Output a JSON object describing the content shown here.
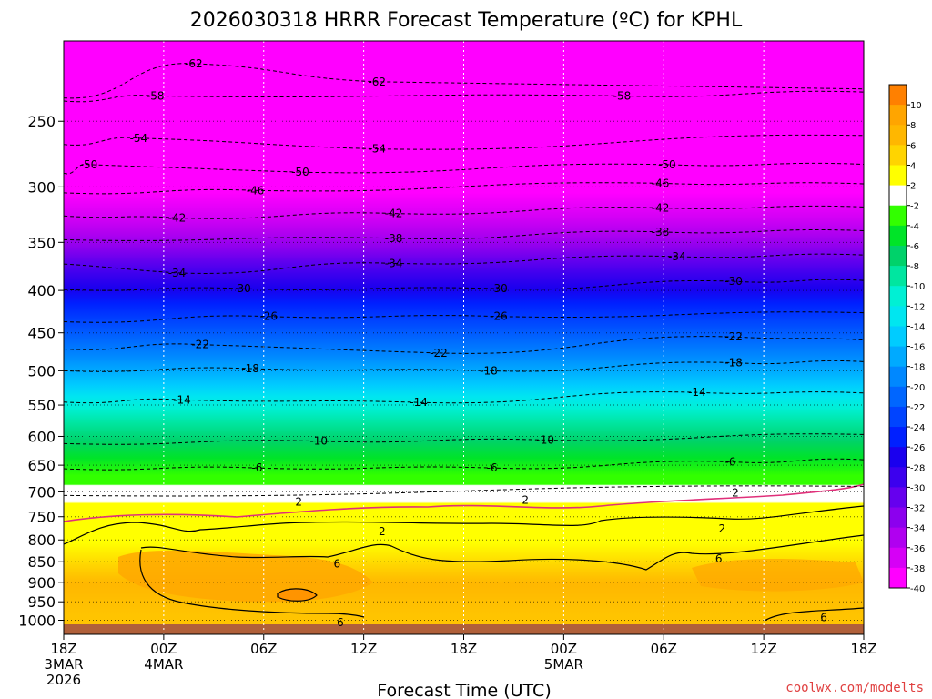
{
  "chart_data": {
    "type": "heatmap",
    "title": "2026030318 HRRR Forecast Temperature (ºC) for KPHL",
    "xlabel": "Forecast Time (UTC)",
    "ylabel": "",
    "credit": "coolwx.com/modelts",
    "x_ticks": [
      {
        "hour": 0,
        "lines": [
          "18Z",
          "3MAR",
          "2026"
        ]
      },
      {
        "hour": 6,
        "lines": [
          "00Z",
          "4MAR"
        ]
      },
      {
        "hour": 12,
        "lines": [
          "06Z"
        ]
      },
      {
        "hour": 18,
        "lines": [
          "12Z"
        ]
      },
      {
        "hour": 24,
        "lines": [
          "18Z"
        ]
      },
      {
        "hour": 30,
        "lines": [
          "00Z",
          "5MAR"
        ]
      },
      {
        "hour": 36,
        "lines": [
          "06Z"
        ]
      },
      {
        "hour": 42,
        "lines": [
          "12Z"
        ]
      },
      {
        "hour": 48,
        "lines": [
          "18Z"
        ]
      }
    ],
    "x_range_hours": [
      0,
      48
    ],
    "y_axis": "pressure (hPa), log scale, inverted",
    "y_ticks": [
      250,
      300,
      350,
      400,
      450,
      500,
      550,
      600,
      650,
      700,
      750,
      800,
      850,
      900,
      950,
      1000
    ],
    "y_range": [
      200,
      1040
    ],
    "grid": true,
    "colorbar_labels": [
      10,
      8,
      6,
      4,
      2,
      -2,
      -4,
      -6,
      -8,
      -10,
      -12,
      -14,
      -16,
      -18,
      -20,
      -22,
      -24,
      -26,
      -28,
      -30,
      -32,
      -34,
      -36,
      -38,
      -40
    ],
    "colorbar_colors": [
      "#ff8000",
      "#ffa500",
      "#ffb700",
      "#ffd400",
      "#ffff00",
      "#ffffff",
      "#32ff00",
      "#00e428",
      "#00d26a",
      "#00e6a0",
      "#00f0d4",
      "#00e6f0",
      "#00ccff",
      "#00aaff",
      "#0088ff",
      "#0066ff",
      "#0044ff",
      "#0020ff",
      "#1a00ee",
      "#3c00ee",
      "#6600ee",
      "#8c00ee",
      "#b000f0",
      "#d600f6",
      "#ff00ff"
    ],
    "contour_labels": [
      {
        "label": "-62",
        "hour": 7.8,
        "p": 213
      },
      {
        "label": "-62",
        "hour": 18.8,
        "p": 224
      },
      {
        "label": "-58",
        "hour": 5.5,
        "p": 233
      },
      {
        "label": "-58",
        "hour": 33.5,
        "p": 233
      },
      {
        "label": "-54",
        "hour": 4.5,
        "p": 262
      },
      {
        "label": "-54",
        "hour": 18.8,
        "p": 270
      },
      {
        "label": "-50",
        "hour": 1.5,
        "p": 282
      },
      {
        "label": "-50",
        "hour": 14.2,
        "p": 288
      },
      {
        "label": "-50",
        "hour": 36.2,
        "p": 282
      },
      {
        "label": "-46",
        "hour": 11.5,
        "p": 303
      },
      {
        "label": "-46",
        "hour": 35.8,
        "p": 297
      },
      {
        "label": "-42",
        "hour": 6.8,
        "p": 327
      },
      {
        "label": "-42",
        "hour": 19.8,
        "p": 323
      },
      {
        "label": "-42",
        "hour": 35.8,
        "p": 318
      },
      {
        "label": "-38",
        "hour": 19.8,
        "p": 346
      },
      {
        "label": "-38",
        "hour": 35.8,
        "p": 340
      },
      {
        "label": "-34",
        "hour": 6.8,
        "p": 381
      },
      {
        "label": "-34",
        "hour": 19.8,
        "p": 371
      },
      {
        "label": "-34",
        "hour": 36.8,
        "p": 364
      },
      {
        "label": "-30",
        "hour": 10.7,
        "p": 398
      },
      {
        "label": "-30",
        "hour": 26.1,
        "p": 398
      },
      {
        "label": "-30",
        "hour": 40.2,
        "p": 390
      },
      {
        "label": "-26",
        "hour": 12.3,
        "p": 430
      },
      {
        "label": "-26",
        "hour": 26.1,
        "p": 430
      },
      {
        "label": "-22",
        "hour": 8.2,
        "p": 465
      },
      {
        "label": "-22",
        "hour": 22.5,
        "p": 476
      },
      {
        "label": "-22",
        "hour": 40.2,
        "p": 455
      },
      {
        "label": "-18",
        "hour": 11.2,
        "p": 497
      },
      {
        "label": "-18",
        "hour": 25.5,
        "p": 500
      },
      {
        "label": "-18",
        "hour": 40.2,
        "p": 489
      },
      {
        "label": "-14",
        "hour": 7.1,
        "p": 542
      },
      {
        "label": "-14",
        "hour": 21.3,
        "p": 546
      },
      {
        "label": "-14",
        "hour": 38.0,
        "p": 531
      },
      {
        "label": "-10",
        "hour": 15.3,
        "p": 608
      },
      {
        "label": "-10",
        "hour": 28.9,
        "p": 606
      },
      {
        "label": "-6",
        "hour": 11.6,
        "p": 655
      },
      {
        "label": "-6",
        "hour": 25.7,
        "p": 655
      },
      {
        "label": "-6",
        "hour": 40.0,
        "p": 644
      },
      {
        "label": "2",
        "hour": 14.1,
        "p": 720
      },
      {
        "label": "2",
        "hour": 27.7,
        "p": 716
      },
      {
        "label": "2",
        "hour": 40.3,
        "p": 702
      },
      {
        "label": "2",
        "hour": 19.1,
        "p": 782
      },
      {
        "label": "2",
        "hour": 39.5,
        "p": 776
      },
      {
        "label": "6",
        "hour": 16.4,
        "p": 855
      },
      {
        "label": "6",
        "hour": 39.3,
        "p": 843
      },
      {
        "label": "6",
        "hour": 16.6,
        "p": 1006
      },
      {
        "label": "6",
        "hour": 45.6,
        "p": 992
      }
    ]
  }
}
